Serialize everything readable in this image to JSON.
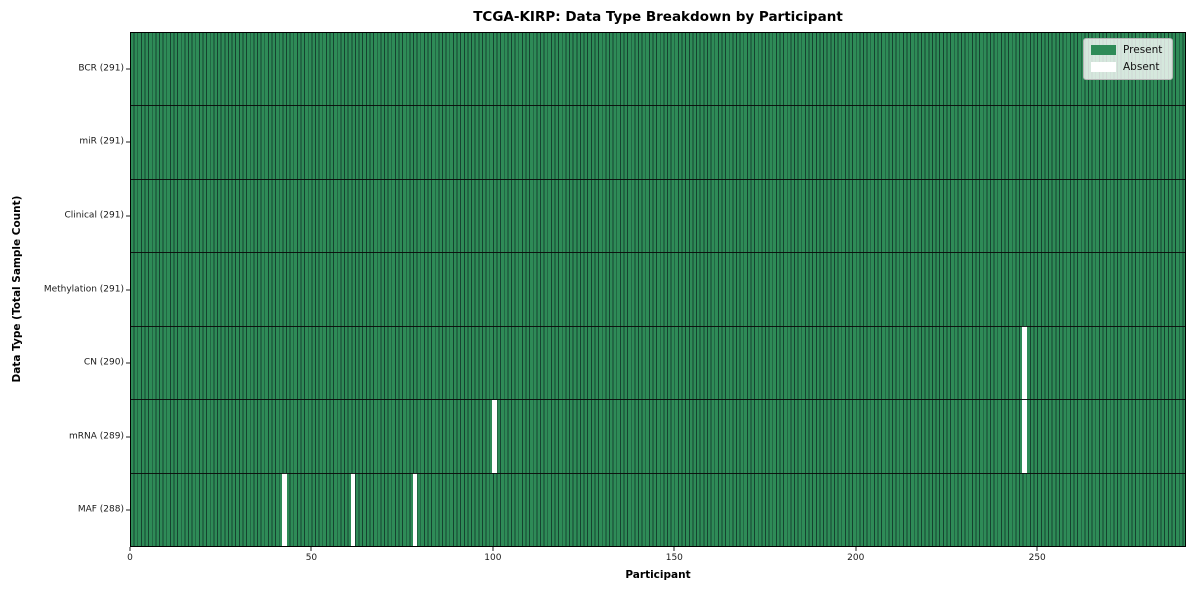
{
  "chart_data": {
    "type": "heatmap",
    "title": "TCGA-KIRP: Data Type Breakdown by Participant",
    "xlabel": "Participant",
    "ylabel": "Data Type (Total Sample Count)",
    "x_range": [
      0,
      291
    ],
    "x_ticks": [
      "0",
      "50",
      "100",
      "150",
      "200",
      "250"
    ],
    "n_participants": 291,
    "grid": false,
    "legend_position": "upper right",
    "legend": {
      "present": "Present",
      "absent": "Absent"
    },
    "colors": {
      "present": "#2e8b57",
      "absent": "#ffffff"
    },
    "rows": [
      {
        "data_type": "BCR",
        "label": "BCR (291)",
        "present_count": 291,
        "absent_participants": []
      },
      {
        "data_type": "miR",
        "label": "miR (291)",
        "present_count": 291,
        "absent_participants": []
      },
      {
        "data_type": "Clinical",
        "label": "Clinical (291)",
        "present_count": 291,
        "absent_participants": []
      },
      {
        "data_type": "Methylation",
        "label": "Methylation (291)",
        "present_count": 291,
        "absent_participants": []
      },
      {
        "data_type": "CN",
        "label": "CN (290)",
        "present_count": 290,
        "absent_participants": [
          246
        ]
      },
      {
        "data_type": "mRNA",
        "label": "mRNA (289)",
        "present_count": 289,
        "absent_participants": [
          100,
          246
        ]
      },
      {
        "data_type": "MAF",
        "label": "MAF (288)",
        "present_count": 288,
        "absent_participants": [
          42,
          61,
          78
        ]
      }
    ]
  }
}
